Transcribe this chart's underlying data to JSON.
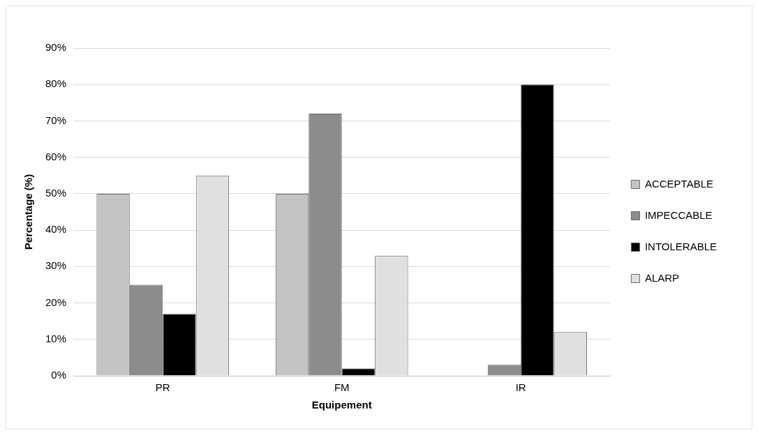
{
  "chart_data": {
    "type": "bar",
    "xlabel": "Equipement",
    "ylabel": "Percentage (%)",
    "categories": [
      "PR",
      "FM",
      "IR"
    ],
    "series": [
      {
        "name": "ACCEPTABLE",
        "color": "#c4c4c4",
        "values": [
          50,
          50,
          0
        ]
      },
      {
        "name": "IMPECCABLE",
        "color": "#8c8c8c",
        "values": [
          25,
          72,
          3
        ]
      },
      {
        "name": "INTOLERABLE",
        "color": "#000000",
        "values": [
          17,
          2,
          80
        ]
      },
      {
        "name": "ALARP",
        "color": "#e0e0e0",
        "values": [
          55,
          33,
          12
        ]
      }
    ],
    "ylim": [
      0,
      90
    ],
    "yticks": [
      {
        "value": 0,
        "label": "0%"
      },
      {
        "value": 10,
        "label": "10%"
      },
      {
        "value": 20,
        "label": "20%"
      },
      {
        "value": 30,
        "label": "30%"
      },
      {
        "value": 40,
        "label": "40%"
      },
      {
        "value": 50,
        "label": "50%"
      },
      {
        "value": 60,
        "label": "60%"
      },
      {
        "value": 70,
        "label": "70%"
      },
      {
        "value": 80,
        "label": "80%"
      },
      {
        "value": 90,
        "label": "90%"
      }
    ],
    "grid": "y",
    "legend": "right"
  }
}
